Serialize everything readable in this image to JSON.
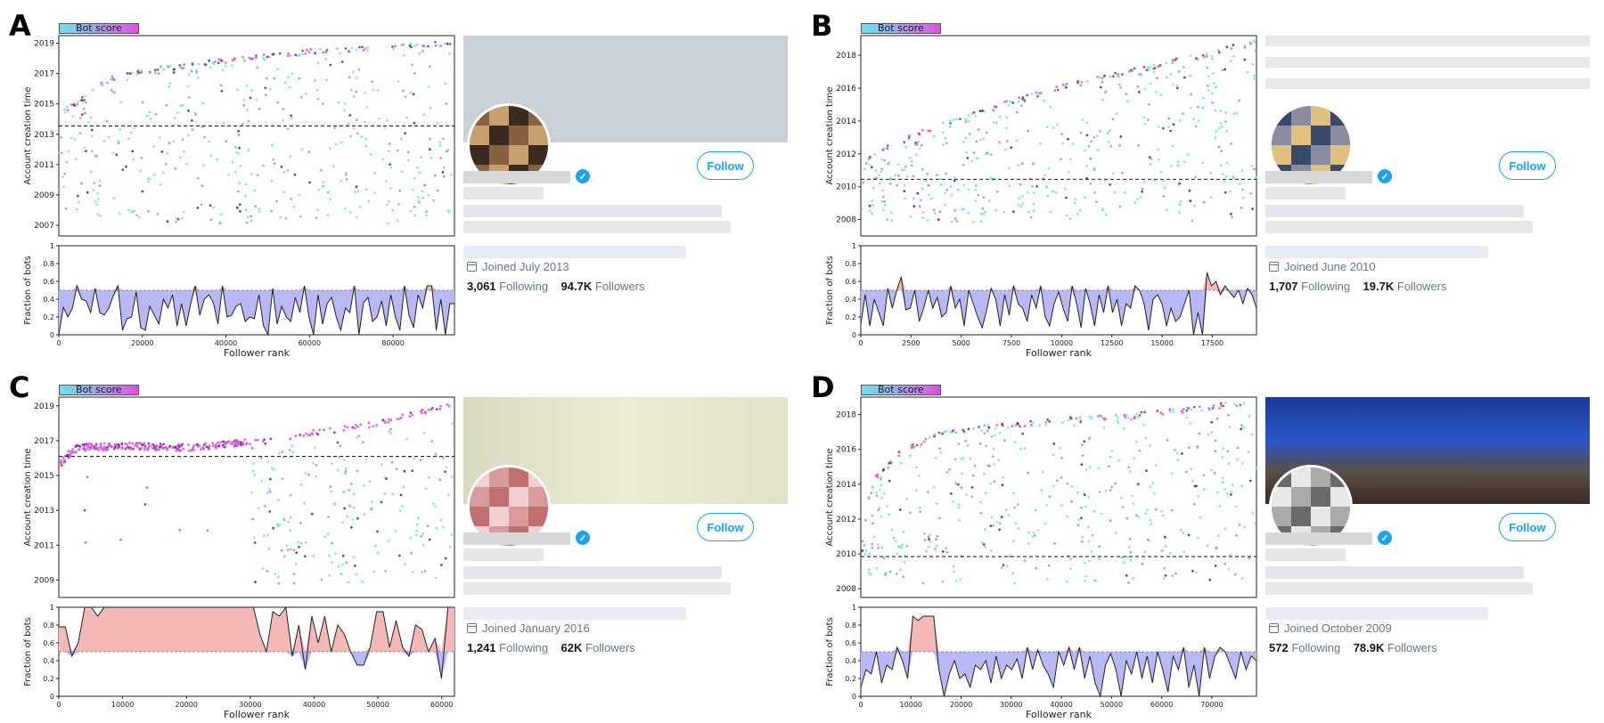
{
  "legend_label": "Bot score",
  "colors": {
    "low_bot": "#6fe0ee",
    "high_bot": "#d94fe0",
    "below_half": "#b8b8f4",
    "above_half": "#f4b8b8",
    "link_blue": "#1da1f2"
  },
  "panels": [
    {
      "letter": "A",
      "follow_label": "Follow",
      "joined": "Joined July 2013",
      "following_count": "3,061",
      "following_label": "Following",
      "followers_count": "94.7K",
      "followers_label": "Followers"
    },
    {
      "letter": "B",
      "follow_label": "Follow",
      "joined": "Joined June 2010",
      "following_count": "1,707",
      "following_label": "Following",
      "followers_count": "19.7K",
      "followers_label": "Followers"
    },
    {
      "letter": "C",
      "follow_label": "Follow",
      "joined": "Joined January 2016",
      "following_count": "1,241",
      "following_label": "Following",
      "followers_count": "62K",
      "followers_label": "Followers"
    },
    {
      "letter": "D",
      "follow_label": "Follow",
      "joined": "Joined October 2009",
      "following_count": "572",
      "following_label": "Following",
      "followers_count": "78.9K",
      "followers_label": "Followers"
    }
  ],
  "chart_data": [
    {
      "panel": "A",
      "type": "scatter",
      "xlabel": "Follower rank",
      "ylabel": "Account creation time",
      "xlim": [
        0,
        94700
      ],
      "ylim": [
        2006.3,
        2019.5
      ],
      "xticks": [
        0,
        20000,
        40000,
        60000,
        80000
      ],
      "yticks": [
        2007,
        2009,
        2011,
        2013,
        2015,
        2017,
        2019
      ],
      "account_creation_line": 2013.55,
      "frontier": [
        [
          0,
          2014.6
        ],
        [
          2500,
          2014.9
        ],
        [
          5000,
          2015.3
        ],
        [
          8000,
          2016.0
        ],
        [
          12000,
          2016.8
        ],
        [
          20000,
          2017.3
        ],
        [
          40000,
          2018.0
        ],
        [
          60000,
          2018.6
        ],
        [
          80000,
          2018.9
        ],
        [
          94700,
          2019.2
        ]
      ],
      "fraction_chart": {
        "ylabel": "Fraction of bots",
        "ylim": [
          0,
          1.0
        ],
        "yticks": [
          0.0,
          0.2,
          0.4,
          0.6,
          0.8,
          1.0
        ],
        "threshold": 0.5,
        "values": [
          0.0,
          0.31,
          0.2,
          0.3,
          0.55,
          0.4,
          0.38,
          0.25,
          0.52,
          0.25,
          0.22,
          0.3,
          0.44,
          0.55,
          0.05,
          0.18,
          0.2,
          0.48,
          0.08,
          0.05,
          0.32,
          0.22,
          0.12,
          0.4,
          0.3,
          0.45,
          0.1,
          0.35,
          0.1,
          0.35,
          0.55,
          0.22,
          0.4,
          0.45,
          0.36,
          0.12,
          0.55,
          0.2,
          0.22,
          0.32,
          0.35,
          0.15,
          0.2,
          0.18,
          0.45,
          0.1,
          0.0,
          0.52,
          0.12,
          0.32,
          0.2,
          0.15,
          0.42,
          0.25,
          0.55,
          0.2,
          0.0,
          0.45,
          0.12,
          0.35,
          0.42,
          0.2,
          0.05,
          0.3,
          0.25,
          0.55,
          0.0,
          0.36,
          0.42,
          0.15,
          0.2,
          0.38,
          0.1,
          0.45,
          0.2,
          0.05,
          0.55,
          0.22,
          0.08,
          0.45,
          0.3,
          0.55,
          0.55,
          0.05,
          0.4,
          0.0,
          0.35,
          0.35
        ]
      }
    },
    {
      "panel": "B",
      "type": "scatter",
      "xlabel": "Follower rank",
      "ylabel": "Account creation time",
      "xlim": [
        0,
        19700
      ],
      "ylim": [
        2007.0,
        2019.2
      ],
      "xticks": [
        0,
        2500,
        5000,
        7500,
        10000,
        12500,
        15000,
        17500
      ],
      "yticks": [
        2008,
        2010,
        2012,
        2014,
        2016,
        2018
      ],
      "account_creation_line": 2010.45,
      "frontier": [
        [
          0,
          2011.6
        ],
        [
          1000,
          2012.3
        ],
        [
          2500,
          2013.2
        ],
        [
          5000,
          2014.3
        ],
        [
          7500,
          2015.3
        ],
        [
          10000,
          2016.2
        ],
        [
          12500,
          2016.9
        ],
        [
          15000,
          2017.6
        ],
        [
          17500,
          2018.3
        ],
        [
          19700,
          2019.0
        ]
      ],
      "fraction_chart": {
        "ylabel": "Fraction of bots",
        "ylim": [
          0,
          1.0
        ],
        "yticks": [
          0.0,
          0.2,
          0.4,
          0.6,
          0.8,
          1.0
        ],
        "threshold": 0.5,
        "values": [
          0.12,
          0.45,
          0.1,
          0.4,
          0.25,
          0.1,
          0.52,
          0.3,
          0.5,
          0.65,
          0.28,
          0.3,
          0.5,
          0.15,
          0.3,
          0.5,
          0.3,
          0.42,
          0.2,
          0.25,
          0.55,
          0.3,
          0.4,
          0.1,
          0.5,
          0.35,
          0.2,
          0.08,
          0.28,
          0.52,
          0.4,
          0.1,
          0.45,
          0.22,
          0.55,
          0.35,
          0.3,
          0.15,
          0.45,
          0.3,
          0.55,
          0.2,
          0.1,
          0.35,
          0.48,
          0.3,
          0.15,
          0.55,
          0.35,
          0.08,
          0.52,
          0.35,
          0.1,
          0.45,
          0.25,
          0.55,
          0.25,
          0.4,
          0.1,
          0.35,
          0.3,
          0.55,
          0.5,
          0.35,
          0.05,
          0.4,
          0.45,
          0.35,
          0.1,
          0.3,
          0.15,
          0.2,
          0.35,
          0.5,
          0.0,
          0.25,
          0.0,
          0.7,
          0.55,
          0.6,
          0.45,
          0.55,
          0.48,
          0.42,
          0.5,
          0.35,
          0.52,
          0.45,
          0.3
        ]
      }
    },
    {
      "panel": "C",
      "type": "scatter",
      "xlabel": "Follower rank",
      "ylabel": "Account creation time",
      "xlim": [
        0,
        62000
      ],
      "ylim": [
        2008.0,
        2019.5
      ],
      "xticks": [
        0,
        10000,
        20000,
        30000,
        40000,
        50000,
        60000
      ],
      "yticks": [
        2009,
        2011,
        2013,
        2015,
        2017,
        2019
      ],
      "account_creation_line": 2016.1,
      "frontier": [
        [
          0,
          2015.8
        ],
        [
          1500,
          2016.4
        ],
        [
          3000,
          2016.8
        ],
        [
          10000,
          2016.9
        ],
        [
          20000,
          2016.8
        ],
        [
          30000,
          2017.1
        ],
        [
          40000,
          2017.6
        ],
        [
          48000,
          2018.0
        ],
        [
          55000,
          2018.6
        ],
        [
          60000,
          2019.1
        ],
        [
          62000,
          2019.2
        ]
      ],
      "fraction_chart": {
        "ylabel": "Fraction of bots",
        "ylim": [
          0,
          1.0
        ],
        "yticks": [
          0.0,
          0.2,
          0.4,
          0.6,
          0.8,
          1.0
        ],
        "threshold": 0.5,
        "values": [
          0.78,
          0.78,
          0.45,
          0.6,
          1.0,
          1.0,
          0.9,
          1.0,
          1.0,
          1.0,
          1.0,
          1.0,
          1.0,
          1.0,
          1.0,
          1.0,
          1.0,
          1.0,
          1.0,
          1.0,
          1.0,
          1.0,
          1.0,
          1.0,
          1.0,
          1.0,
          1.0,
          1.0,
          1.0,
          1.0,
          1.0,
          0.7,
          0.5,
          0.95,
          0.9,
          1.0,
          0.45,
          0.8,
          0.3,
          0.9,
          0.6,
          0.9,
          0.5,
          0.8,
          0.7,
          0.5,
          0.35,
          0.35,
          0.55,
          0.95,
          0.95,
          0.55,
          0.85,
          0.55,
          0.45,
          0.8,
          0.75,
          0.5,
          0.65,
          0.2,
          1.0,
          1.0
        ]
      }
    },
    {
      "panel": "D",
      "type": "scatter",
      "xlabel": "Follower rank",
      "ylabel": "Account creation time",
      "xlim": [
        0,
        78900
      ],
      "ylim": [
        2007.5,
        2019.0
      ],
      "xticks": [
        0,
        10000,
        20000,
        30000,
        40000,
        50000,
        60000,
        70000
      ],
      "yticks": [
        2008,
        2010,
        2012,
        2014,
        2016,
        2018
      ],
      "account_creation_line": 2009.85,
      "frontier": [
        [
          0,
          2012.0
        ],
        [
          3000,
          2014.5
        ],
        [
          8000,
          2016.0
        ],
        [
          15000,
          2017.0
        ],
        [
          25000,
          2017.4
        ],
        [
          40000,
          2017.8
        ],
        [
          55000,
          2018.1
        ],
        [
          70000,
          2018.6
        ],
        [
          78900,
          2018.9
        ]
      ],
      "fraction_chart": {
        "ylabel": "Fraction of bots",
        "ylim": [
          0,
          1.0
        ],
        "yticks": [
          0.0,
          0.2,
          0.4,
          0.6,
          0.8,
          1.0
        ],
        "threshold": 0.5,
        "values": [
          0.1,
          0.3,
          0.25,
          0.5,
          0.15,
          0.35,
          0.3,
          0.55,
          0.4,
          0.2,
          0.9,
          0.85,
          0.9,
          0.9,
          0.9,
          0.3,
          0.0,
          0.25,
          0.4,
          0.2,
          0.25,
          0.1,
          0.35,
          0.3,
          0.4,
          0.15,
          0.45,
          0.2,
          0.35,
          0.3,
          0.42,
          0.2,
          0.55,
          0.3,
          0.52,
          0.35,
          0.25,
          0.1,
          0.5,
          0.35,
          0.55,
          0.3,
          0.55,
          0.2,
          0.45,
          0.15,
          0.0,
          0.35,
          0.48,
          0.3,
          0.0,
          0.4,
          0.25,
          0.5,
          0.2,
          0.45,
          0.15,
          0.5,
          0.3,
          0.05,
          0.45,
          0.3,
          0.55,
          0.1,
          0.35,
          0.0,
          0.55,
          0.2,
          0.45,
          0.55,
          0.5,
          0.35,
          0.2,
          0.5,
          0.3,
          0.45,
          0.4
        ]
      }
    }
  ]
}
